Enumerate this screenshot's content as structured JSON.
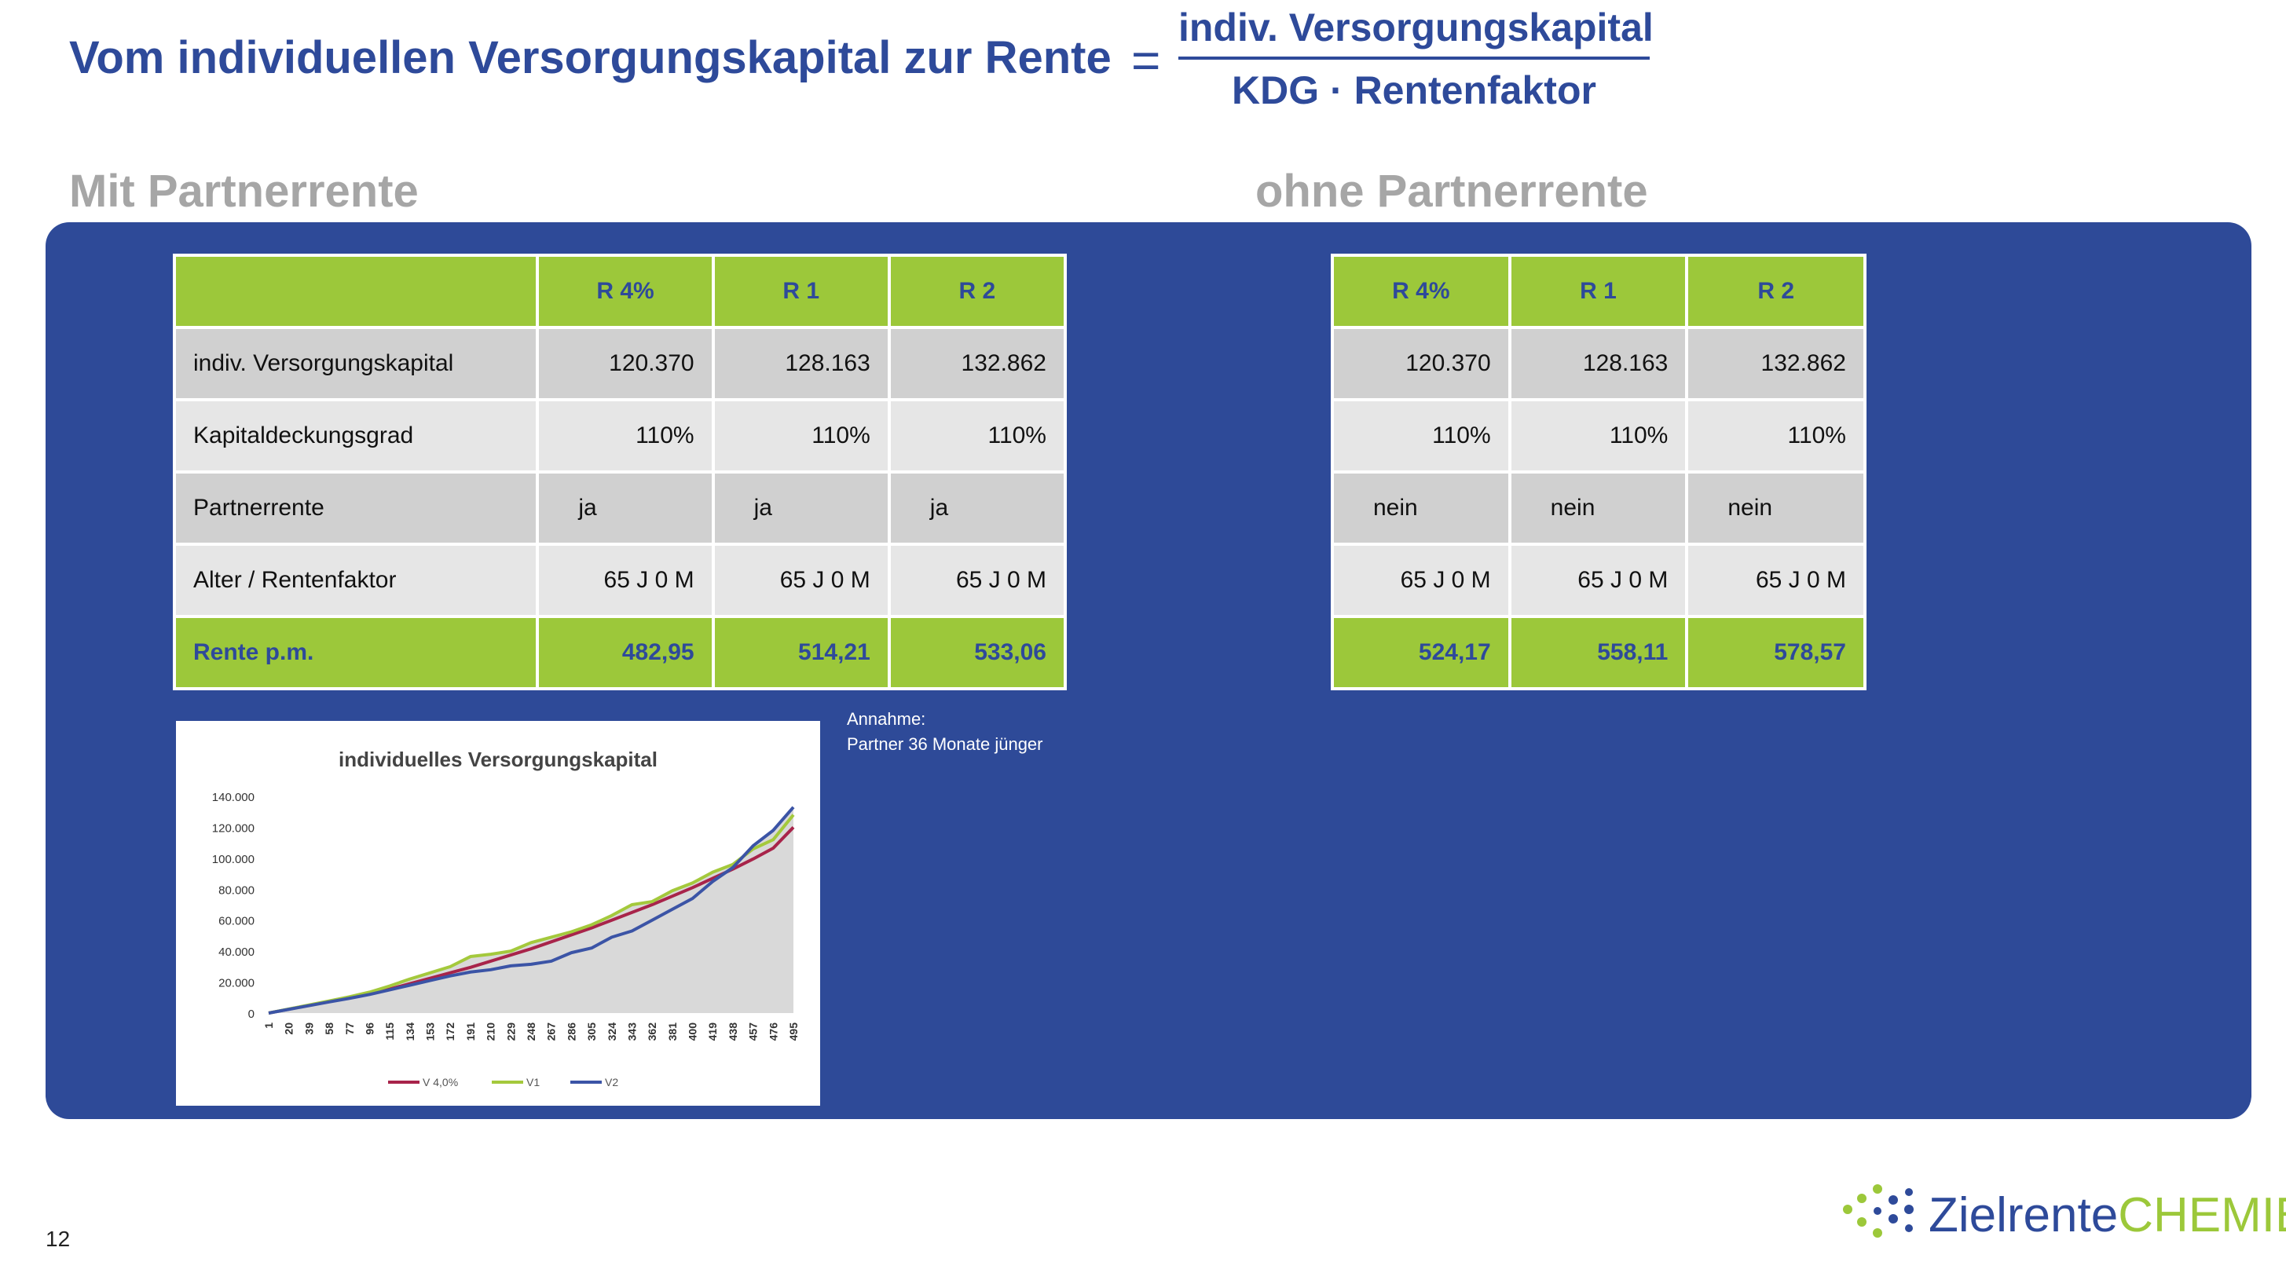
{
  "title": "Vom individuellen Versorgungskapital zur Rente",
  "formula": {
    "eq": "=",
    "numerator": "indiv. Versorgungskapital",
    "denominator": "KDG · Rentenfaktor"
  },
  "sections": {
    "left": "Mit Partnerrente",
    "right": "ohne Partnerrente"
  },
  "table_left": {
    "headers": [
      "",
      "R 4%",
      "R 1",
      "R 2"
    ],
    "rows": [
      [
        "indiv. Versorgungskapital",
        "120.370",
        "128.163",
        "132.862"
      ],
      [
        "Kapitaldeckungsgrad",
        "110%",
        "110%",
        "110%"
      ],
      [
        "Partnerrente",
        "ja",
        "ja",
        "ja"
      ],
      [
        "Alter / Rentenfaktor",
        "65 J 0 M",
        "65 J 0 M",
        "65 J 0 M"
      ]
    ],
    "total": [
      "Rente p.m.",
      "482,95",
      "514,21",
      "533,06"
    ]
  },
  "table_right": {
    "headers": [
      "R 4%",
      "R 1",
      "R 2"
    ],
    "rows": [
      [
        "120.370",
        "128.163",
        "132.862"
      ],
      [
        "110%",
        "110%",
        "110%"
      ],
      [
        "nein",
        "nein",
        "nein"
      ],
      [
        "65 J 0 M",
        "65 J 0 M",
        "65 J 0 M"
      ]
    ],
    "total": [
      "524,17",
      "558,11",
      "578,57"
    ]
  },
  "note": {
    "line1": "Annahme:",
    "line2": "Partner 36 Monate jünger"
  },
  "chart_data": {
    "type": "line",
    "title": "individuelles Versorgungskapital",
    "xlabel": "",
    "ylabel": "",
    "ylim": [
      0,
      140000
    ],
    "yticks": [
      "140.000",
      "120.000",
      "100.000",
      "80.000",
      "60.000",
      "40.000",
      "20.000",
      "0"
    ],
    "x": [
      "1",
      "20",
      "39",
      "58",
      "77",
      "96",
      "115",
      "134",
      "153",
      "172",
      "191",
      "210",
      "229",
      "248",
      "267",
      "286",
      "305",
      "324",
      "343",
      "362",
      "381",
      "400",
      "419",
      "438",
      "457",
      "476",
      "495"
    ],
    "series": [
      {
        "name": "V 4,0%",
        "color": "#a8244a",
        "values": [
          0,
          2500,
          5000,
          7500,
          10000,
          12500,
          15500,
          19000,
          22500,
          26000,
          29500,
          33500,
          37500,
          41500,
          46000,
          50500,
          55000,
          60000,
          65000,
          70000,
          75500,
          81000,
          87000,
          93000,
          99500,
          106500,
          120000
        ]
      },
      {
        "name": "V1",
        "color": "#a4c93c",
        "values": [
          0,
          2600,
          5200,
          7800,
          10500,
          13500,
          17500,
          22000,
          26000,
          30000,
          36500,
          38000,
          40000,
          45500,
          49000,
          52500,
          57000,
          63000,
          70000,
          72000,
          79000,
          84000,
          91000,
          96000,
          106000,
          112000,
          128000
        ]
      },
      {
        "name": "V2",
        "color": "#3b54a6",
        "values": [
          0,
          2400,
          4800,
          7200,
          9500,
          12000,
          15000,
          18000,
          21000,
          24000,
          26500,
          28000,
          30500,
          31500,
          33500,
          39000,
          42000,
          49000,
          53000,
          60000,
          67000,
          74000,
          85000,
          94000,
          108000,
          118000,
          133000
        ]
      }
    ]
  },
  "footer": {
    "page": "12"
  },
  "logo": {
    "part1": "Zielrente",
    "part2": "CHEMIE"
  }
}
